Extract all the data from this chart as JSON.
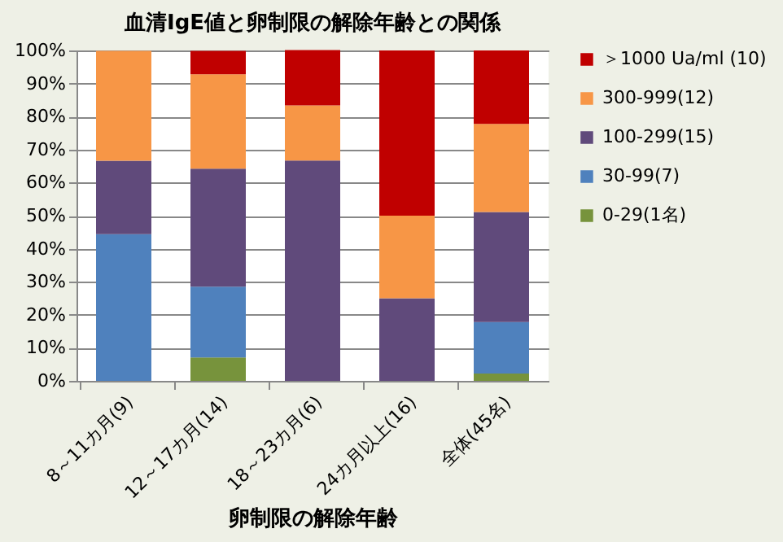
{
  "chart_data": {
    "type": "bar",
    "title": "血清IgE値と卵制限の解除年齢との関係",
    "xlabel": "卵制限の解除年齢",
    "categories": [
      "8～11カ月(9)",
      "12～17カ月(14)",
      "18～23カ月(6)",
      "24カ月以上(16)",
      "全体(45名)"
    ],
    "stacked": true,
    "series": [
      {
        "name": "0-29(1名)",
        "color": "#77933c",
        "values": [
          0,
          7.1,
          0,
          0,
          2.2
        ]
      },
      {
        "name": "30-99(7)",
        "color": "#4f81bd",
        "values": [
          44.4,
          21.4,
          0,
          0,
          15.6
        ]
      },
      {
        "name": "100-299(15)",
        "color": "#604a7b",
        "values": [
          22.2,
          35.7,
          66.7,
          25,
          33.3
        ]
      },
      {
        "name": "300-999(12)",
        "color": "#f79646",
        "values": [
          33.3,
          28.6,
          16.7,
          25,
          26.7
        ]
      },
      {
        "name": "＞1000 Ua/ml (10)",
        "color": "#c00000",
        "values": [
          0,
          7.1,
          16.7,
          50,
          22.2
        ]
      }
    ],
    "ylim": [
      0,
      100
    ],
    "yticks": [
      {
        "value": 0,
        "label": "0%"
      },
      {
        "value": 10,
        "label": "10%"
      },
      {
        "value": 20,
        "label": "20%"
      },
      {
        "value": 30,
        "label": "30%"
      },
      {
        "value": 40,
        "label": "40%"
      },
      {
        "value": 50,
        "label": "50%"
      },
      {
        "value": 60,
        "label": "60%"
      },
      {
        "value": 70,
        "label": "70%"
      },
      {
        "value": 80,
        "label": "80%"
      },
      {
        "value": 90,
        "label": "90%"
      },
      {
        "value": 100,
        "label": "100%"
      }
    ],
    "grid": "y",
    "legend": "right"
  }
}
